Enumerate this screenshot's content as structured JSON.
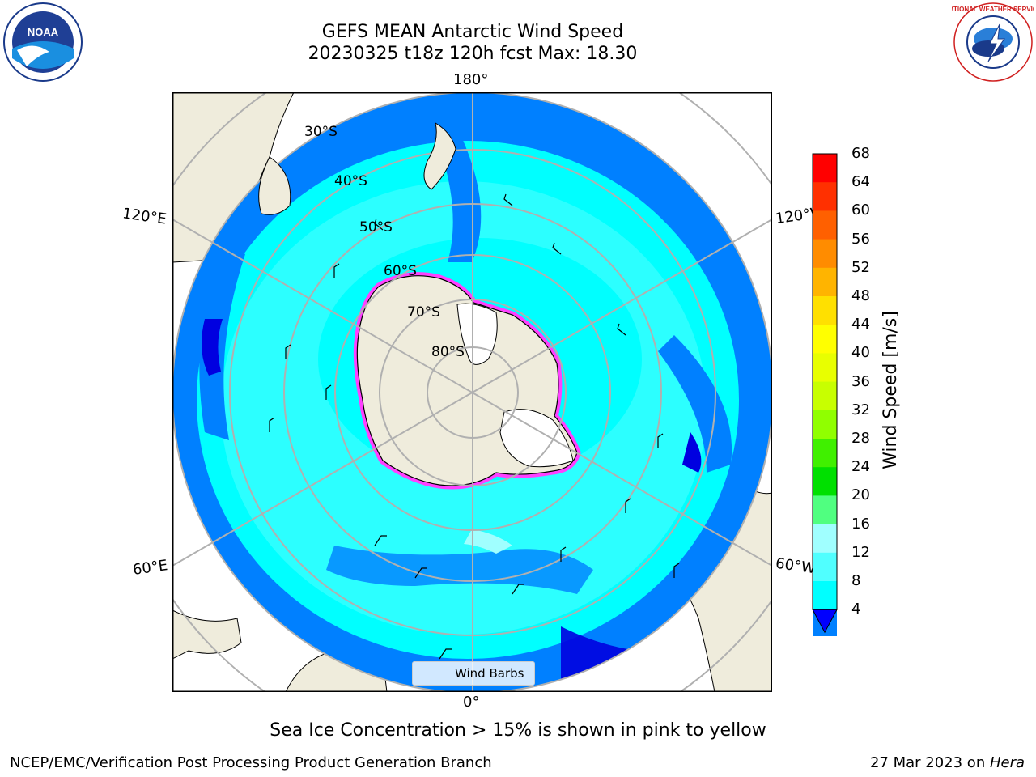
{
  "title": {
    "line1": "GEFS MEAN Antarctic Wind Speed",
    "line2": "20230325 t18z 120h fcst   Max: 18.30"
  },
  "logos": {
    "left": {
      "icon": "noaa-logo",
      "text": "NOAA"
    },
    "right": {
      "icon": "nws-logo",
      "text": "NATIONAL WEATHER SERVICE"
    }
  },
  "map": {
    "projection": "south-polar-stereographic",
    "longitude_labels": {
      "top": "180°",
      "bottom": "0°",
      "upper_left": "120°E",
      "upper_right": "120°W",
      "lower_left": "60°E",
      "lower_right": "60°W"
    },
    "latitude_labels": [
      "30°S",
      "40°S",
      "50°S",
      "60°S",
      "70°S",
      "80°S"
    ],
    "legend_label": "Wind Barbs",
    "colors": {
      "land": "#efecdc",
      "ocean_blue": "#0080ff",
      "cyan": "#00ffff",
      "light_cyan": "#50ffff",
      "pale_cyan": "#a0ffff",
      "deep_blue": "#0000e0",
      "sea_ice": "#ff40ff"
    }
  },
  "colorbar": {
    "title": "Wind Speed [m/s]",
    "ticks": [
      "68",
      "64",
      "60",
      "56",
      "52",
      "48",
      "44",
      "40",
      "36",
      "32",
      "28",
      "24",
      "20",
      "16",
      "12",
      "8",
      "4"
    ],
    "colors": [
      "#ff0000",
      "#ff3000",
      "#ff6000",
      "#ff8c00",
      "#ffb400",
      "#ffe000",
      "#ffff00",
      "#e8ff00",
      "#c8ff00",
      "#90ff00",
      "#40f000",
      "#00e000",
      "#50ff80",
      "#a0ffff",
      "#50ffff",
      "#00ffff",
      "#0080ff"
    ],
    "under_color": "#0000ff"
  },
  "notes": {
    "sea_ice": "Sea Ice Concentration > 15% is shown in pink to yellow"
  },
  "footer": {
    "left": "NCEP/EMC/Verification Post Processing Product Generation Branch",
    "right_date": "27 Mar 2023 on ",
    "right_host": "Hera"
  }
}
